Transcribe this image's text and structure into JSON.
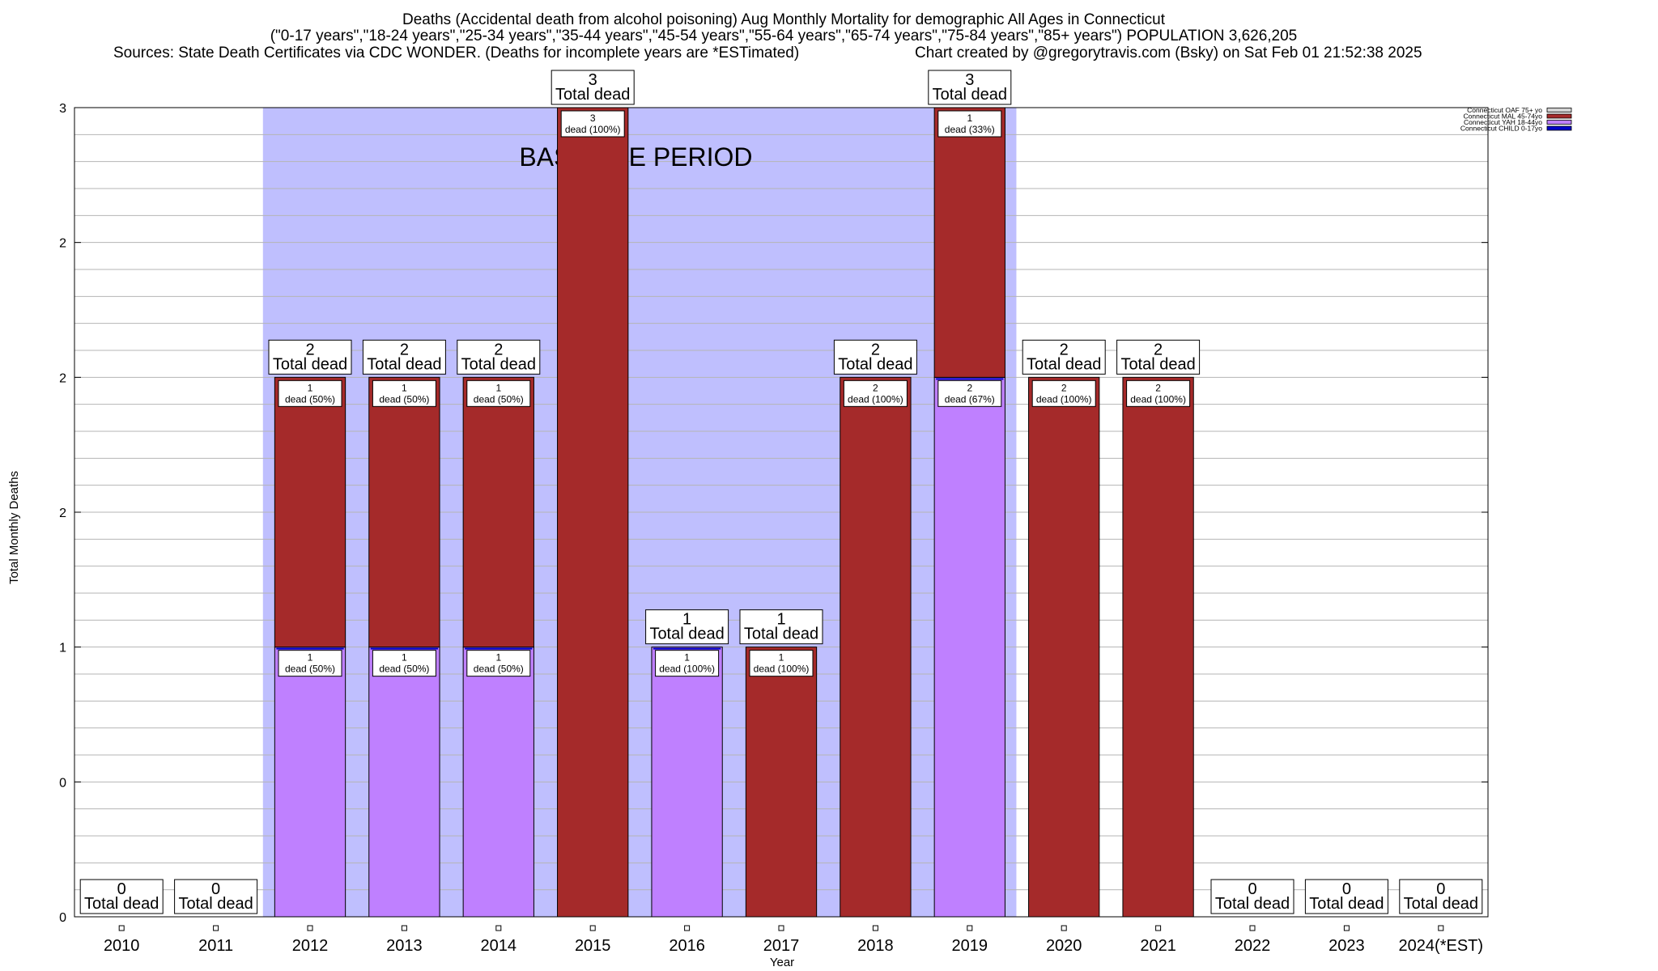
{
  "header": {
    "line1": "Deaths (Accidental death from alcohol poisoning) Aug Monthly Mortality for demographic All Ages in Connecticut",
    "line2": "(\"0-17 years\",\"18-24 years\",\"25-34 years\",\"35-44 years\",\"45-54 years\",\"55-64 years\",\"65-74 years\",\"75-84 years\",\"85+ years\") POPULATION 3,626,205",
    "line3_left": "Sources: State Death Certificates via CDC WONDER. (Deaths for incomplete years are *ESTimated)",
    "line3_right": "Chart created by @gregorytravis.com (Bsky) on Sat Feb 01 21:52:38 2025"
  },
  "baseline_label": "BASELINE PERIOD",
  "total_label_suffix": "Total dead",
  "segment_label_word": "dead",
  "colors": {
    "baseline": "#bfbffe",
    "oaf": "#d3d3d3",
    "mal": "#a52a2a",
    "yah": "#bf80ff",
    "child": "#0000c8"
  },
  "chart_data": {
    "type": "bar",
    "stacked": true,
    "xlabel": "Year",
    "ylabel": "Total Monthly Deaths",
    "ylim": [
      0,
      3
    ],
    "y_tick_labels": [
      "0",
      "0",
      "1",
      "2",
      "2",
      "2",
      "3"
    ],
    "categories": [
      "2010",
      "2011",
      "2012",
      "2013",
      "2014",
      "2015",
      "2016",
      "2017",
      "2018",
      "2019",
      "2020",
      "2021",
      "2022",
      "2023",
      "2024(*EST)"
    ],
    "baseline_period": [
      "2012",
      "2019"
    ],
    "series": [
      {
        "name": "Connecticut CHILD 0-17yo",
        "values": [
          0,
          0,
          0,
          0,
          0,
          0,
          0,
          0,
          0,
          0,
          0,
          0,
          0,
          0,
          0
        ]
      },
      {
        "name": "Connecticut YAH 18-44yo",
        "values": [
          0,
          0,
          1,
          1,
          1,
          0,
          1,
          0,
          0,
          2,
          0,
          0,
          0,
          0,
          0
        ]
      },
      {
        "name": "Connecticut MAL 45-74yo",
        "values": [
          0,
          0,
          1,
          1,
          1,
          3,
          0,
          1,
          2,
          1,
          2,
          2,
          0,
          0,
          0
        ]
      },
      {
        "name": "Connecticut OAF 75+ yo",
        "values": [
          0,
          0,
          0,
          0,
          0,
          0,
          0,
          0,
          0,
          0,
          0,
          0,
          0,
          0,
          0
        ]
      }
    ],
    "totals": [
      0,
      0,
      2,
      2,
      2,
      3,
      1,
      1,
      2,
      3,
      2,
      2,
      0,
      0,
      0
    ],
    "segment_percent_labels": {
      "yah": [
        "",
        "",
        "(50%)",
        "(50%)",
        "(50%)",
        "",
        "(100%)",
        "",
        "",
        "(67%)",
        "",
        "",
        "",
        "",
        ""
      ],
      "mal": [
        "",
        "",
        "(50%)",
        "(50%)",
        "(50%)",
        "(100%)",
        "",
        "(100%)",
        "(100%)",
        "(33%)",
        "(100%)",
        "(100%)",
        "",
        "",
        ""
      ]
    },
    "legend": [
      {
        "name": "Connecticut OAF 75+ yo",
        "key": "oaf"
      },
      {
        "name": "Connecticut MAL 45-74yo",
        "key": "mal"
      },
      {
        "name": "Connecticut YAH 18-44yo",
        "key": "yah"
      },
      {
        "name": "Connecticut CHILD 0-17yo",
        "key": "child"
      }
    ],
    "legend_position": "top-right"
  }
}
